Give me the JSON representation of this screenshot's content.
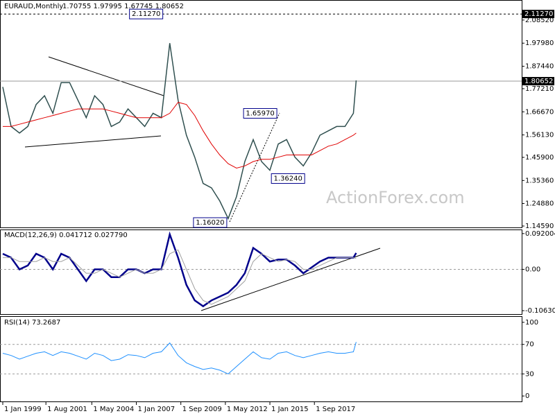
{
  "chart_data": [
    {
      "type": "line",
      "title": "EURAUD,Monthly",
      "subtitle": "1.70755 1.97995 1.67745 1.80652",
      "watermark": "ActionForex.com",
      "x": [
        "1999-01",
        "1999-07",
        "2000-01",
        "2000-07",
        "2001-01",
        "2001-07",
        "2002-01",
        "2002-07",
        "2003-01",
        "2003-07",
        "2004-01",
        "2004-07",
        "2005-01",
        "2005-07",
        "2006-01",
        "2006-07",
        "2007-01",
        "2007-07",
        "2008-01",
        "2008-07",
        "2009-01",
        "2009-07",
        "2010-01",
        "2010-07",
        "2011-01",
        "2011-07",
        "2012-01",
        "2012-07",
        "2013-01",
        "2013-07",
        "2014-01",
        "2014-07",
        "2015-01",
        "2015-07",
        "2016-01",
        "2016-07",
        "2017-01",
        "2017-07",
        "2018-01",
        "2018-07",
        "2019-01",
        "2019-07",
        "2020-01",
        "2020-03"
      ],
      "xlim": [
        "1998-11",
        "2030-02"
      ],
      "xticks": [
        {
          "value": "1999-01",
          "label": "1 Jan 1999"
        },
        {
          "value": "2001-08",
          "label": "1 Aug 2001"
        },
        {
          "value": "2004-05",
          "label": "1 May 2004"
        },
        {
          "value": "2007-01",
          "label": "1 Jan 2007"
        },
        {
          "value": "2009-09",
          "label": "1 Sep 2009"
        },
        {
          "value": "2012-05",
          "label": "1 May 2012"
        },
        {
          "value": "2015-01",
          "label": "1 Jan 2015"
        },
        {
          "value": "2017-09",
          "label": "1 Sep 2017"
        }
      ],
      "ylim": [
        1.1396,
        2.1734
      ],
      "yticks": [
        {
          "value": 2.0852,
          "label": "2.08520"
        },
        {
          "value": 1.9798,
          "label": "1.97980"
        },
        {
          "value": 1.8744,
          "label": "1.87440"
        },
        {
          "value": 1.7721,
          "label": "1.77210"
        },
        {
          "value": 1.6667,
          "label": "1.66670"
        },
        {
          "value": 1.5613,
          "label": "1.56130"
        },
        {
          "value": 1.459,
          "label": "1.45900"
        },
        {
          "value": 1.3536,
          "label": "1.35360"
        },
        {
          "value": 1.2488,
          "label": "1.24880"
        },
        {
          "value": 1.1459,
          "label": "1.14590"
        }
      ],
      "levels": [
        {
          "value": 2.1127,
          "label": "2.11270",
          "style": "dashed"
        },
        {
          "value": 1.80652,
          "label": "1.80652",
          "style": "solid"
        }
      ],
      "annotations": [
        {
          "x": "2008-10",
          "y": 2.1127,
          "label": "2.11270"
        },
        {
          "x": "2015-08",
          "y": 1.6597,
          "label": "1.65970"
        },
        {
          "x": "2017-04",
          "y": 1.3624,
          "label": "1.36240"
        },
        {
          "x": "2012-08",
          "y": 1.1602,
          "label": "1.16020"
        }
      ],
      "series": [
        {
          "color": "#2f4f4f",
          "width": 1.5,
          "values": [
            1.78,
            1.6,
            1.57,
            1.6,
            1.7,
            1.74,
            1.66,
            1.8,
            1.8,
            1.72,
            1.64,
            1.74,
            1.7,
            1.6,
            1.62,
            1.68,
            1.64,
            1.6,
            1.66,
            1.64,
            1.98,
            1.72,
            1.56,
            1.46,
            1.34,
            1.32,
            1.26,
            1.18,
            1.28,
            1.44,
            1.54,
            1.44,
            1.4,
            1.52,
            1.54,
            1.46,
            1.42,
            1.48,
            1.56,
            1.58,
            1.6,
            1.6,
            1.66,
            1.81
          ]
        },
        {
          "color": "#e00000",
          "width": 1,
          "values": [
            1.6,
            1.6,
            1.61,
            1.62,
            1.63,
            1.64,
            1.65,
            1.66,
            1.67,
            1.68,
            1.68,
            1.68,
            1.68,
            1.67,
            1.66,
            1.65,
            1.64,
            1.64,
            1.64,
            1.64,
            1.66,
            1.71,
            1.7,
            1.65,
            1.58,
            1.52,
            1.47,
            1.43,
            1.41,
            1.42,
            1.44,
            1.45,
            1.45,
            1.46,
            1.47,
            1.47,
            1.47,
            1.47,
            1.49,
            1.51,
            1.52,
            1.54,
            1.56,
            1.57
          ]
        }
      ]
    },
    {
      "type": "line",
      "title": "MACD(12,26,9) 0.041712 0.027790",
      "ylim": [
        -0.1151,
        0.1007
      ],
      "yticks": [
        0.092004,
        {
          "value": 0,
          "label": "0.00"
        },
        -0.106308
      ],
      "grid": "inner",
      "series": [
        {
          "color": "#00008b",
          "width": 2.5,
          "values": [
            0.04,
            0.03,
            0.0,
            0.01,
            0.04,
            0.03,
            0.0,
            0.04,
            0.03,
            0.0,
            -0.03,
            0.0,
            0.0,
            -0.02,
            -0.02,
            0.0,
            0.0,
            -0.01,
            0.0,
            0.0,
            0.09,
            0.03,
            -0.04,
            -0.08,
            -0.095,
            -0.08,
            -0.07,
            -0.06,
            -0.04,
            -0.01,
            0.055,
            0.04,
            0.02,
            0.025,
            0.025,
            0.01,
            -0.01,
            0.005,
            0.02,
            0.03,
            0.03,
            0.03,
            0.03,
            0.042
          ]
        },
        {
          "color": "#a0a0a0",
          "width": 1,
          "values": [
            0.03,
            0.03,
            0.02,
            0.02,
            0.02,
            0.03,
            0.02,
            0.02,
            0.03,
            0.01,
            -0.01,
            -0.01,
            0.0,
            -0.01,
            -0.02,
            -0.01,
            0.0,
            -0.01,
            -0.01,
            0.0,
            0.04,
            0.05,
            0.0,
            -0.05,
            -0.08,
            -0.09,
            -0.08,
            -0.07,
            -0.05,
            -0.03,
            0.02,
            0.04,
            0.03,
            0.02,
            0.025,
            0.02,
            0.0,
            0.0,
            0.01,
            0.02,
            0.03,
            0.03,
            0.03,
            0.028
          ]
        }
      ]
    },
    {
      "type": "line",
      "title": "RSI(14) 73.2687",
      "ylim": [
        -7.4,
        107.4
      ],
      "yticks": [
        100,
        70,
        30,
        0
      ],
      "grid": "inner",
      "series": [
        {
          "color": "#1e90ff",
          "width": 1,
          "values": [
            58,
            55,
            50,
            54,
            58,
            60,
            55,
            60,
            58,
            54,
            50,
            58,
            55,
            48,
            50,
            56,
            55,
            52,
            58,
            60,
            72,
            55,
            45,
            40,
            36,
            38,
            35,
            30,
            40,
            50,
            60,
            52,
            50,
            58,
            60,
            55,
            52,
            55,
            58,
            60,
            58,
            58,
            60,
            73.2687
          ]
        }
      ]
    }
  ]
}
